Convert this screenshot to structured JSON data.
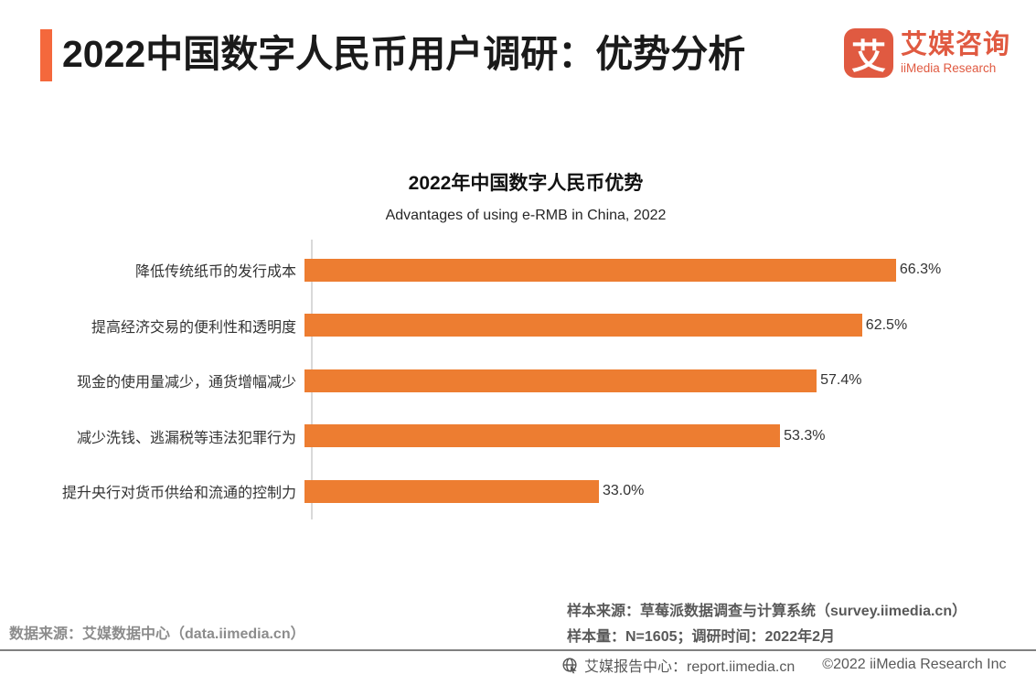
{
  "header": {
    "title": "2022中国数字人民币用户调研：优势分析",
    "logo": {
      "mark_char": "艾",
      "brand_cn": "艾媒咨询",
      "brand_en": "iiMedia Research"
    }
  },
  "chart_data": {
    "type": "bar",
    "orientation": "horizontal",
    "title": "2022年中国数字人民币优势",
    "subtitle": "Advantages of using e-RMB in China, 2022",
    "categories": [
      "降低传统纸币的发行成本",
      "提高经济交易的便利性和透明度",
      "现金的使用量减少，通货增幅减少",
      "减少洗钱、逃漏税等违法犯罪行为",
      "提升央行对货币供给和流通的控制力"
    ],
    "values": [
      66.3,
      62.5,
      57.4,
      53.3,
      33.0
    ],
    "value_labels": [
      "66.3%",
      "62.5%",
      "57.4%",
      "53.3%",
      "33.0%"
    ],
    "xlim": [
      0,
      70
    ],
    "grid": false,
    "legend": false,
    "bar_color": "#ED7D31"
  },
  "footer": {
    "left_source": "数据来源：艾媒数据中心（data.iimedia.cn）",
    "right_source_line1": "样本来源：草莓派数据调查与计算系统（survey.iimedia.cn）",
    "right_source_line2": "样本量：N=1605；调研时间：2022年2月",
    "report_center": "艾媒报告中心：report.iimedia.cn",
    "copyright": "©2022 iiMedia Research Inc"
  },
  "colors": {
    "accent": "#F4683C",
    "bar": "#ED7D31",
    "logo": "#E05A41",
    "axis_line": "#D9D9D9",
    "divider": "#808080",
    "footer_dark_text": "#595959",
    "footer_gray_text": "#8C8C8C"
  }
}
